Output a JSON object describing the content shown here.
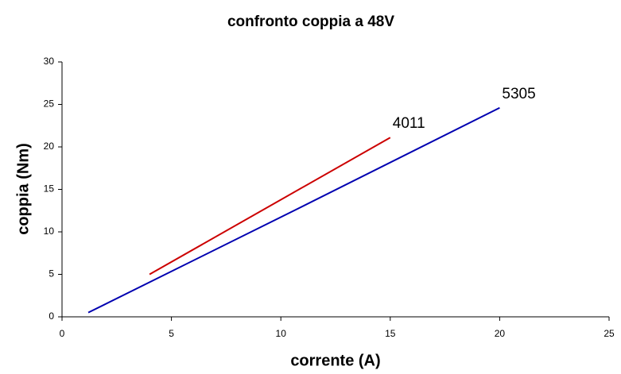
{
  "chart_data": {
    "type": "line",
    "title": "confronto coppia a 48V",
    "x_label": "corrente (A)",
    "y_label": "coppia (Nm)",
    "series": [
      {
        "name": "4011",
        "color": "#cc0000",
        "x": [
          4,
          15
        ],
        "values": [
          5,
          21.1
        ]
      },
      {
        "name": "5305",
        "color": "#0000b0",
        "x": [
          1.2,
          10.6,
          20
        ],
        "values": [
          0.5,
          12.5,
          24.6
        ]
      }
    ],
    "xlim": [
      0,
      25
    ],
    "xticks": [
      0,
      5,
      10,
      15,
      20,
      25
    ],
    "ylim": [
      0,
      30
    ],
    "yticks": [
      0,
      5,
      10,
      15,
      20,
      25,
      30
    ],
    "grid": false
  }
}
